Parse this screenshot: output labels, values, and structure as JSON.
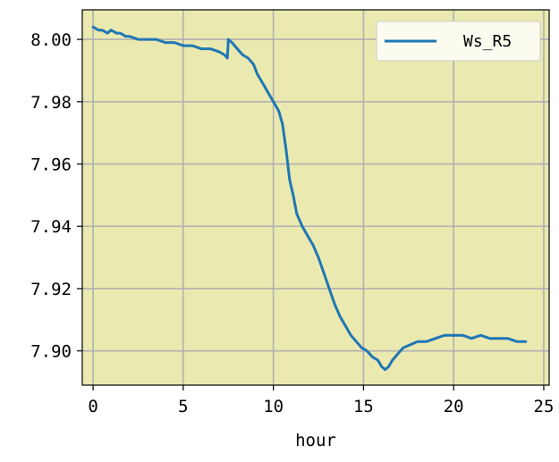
{
  "chart_data": {
    "type": "line",
    "xlabel": "hour",
    "ylabel": "",
    "xlim": [
      -0.6,
      25.3
    ],
    "ylim": [
      7.889,
      8.0095
    ],
    "xticks": [
      0,
      5,
      10,
      15,
      20,
      25
    ],
    "xtick_labels": [
      "0",
      "5",
      "10",
      "15",
      "20",
      "25"
    ],
    "yticks": [
      7.9,
      7.92,
      7.94,
      7.96,
      7.98,
      8.0
    ],
    "ytick_labels": [
      "7.90",
      "7.92",
      "7.94",
      "7.96",
      "7.98",
      "8.00"
    ],
    "grid": true,
    "legend_position": "upper right",
    "colors": {
      "plot_background": "#eae9b0",
      "series": "#1f77b4",
      "grid": "#b0b0b0"
    },
    "series": [
      {
        "name": "Ws_R5",
        "x": [
          0.0,
          0.3,
          0.5,
          0.8,
          1.0,
          1.3,
          1.5,
          1.8,
          2.0,
          2.5,
          3.0,
          3.5,
          4.0,
          4.5,
          5.0,
          5.5,
          6.0,
          6.5,
          7.0,
          7.3,
          7.45,
          7.5,
          7.7,
          8.0,
          8.3,
          8.6,
          8.9,
          9.1,
          9.3,
          9.5,
          9.8,
          10.0,
          10.3,
          10.5,
          10.7,
          10.9,
          11.1,
          11.3,
          11.6,
          11.9,
          12.2,
          12.5,
          12.8,
          13.1,
          13.4,
          13.7,
          14.0,
          14.3,
          14.6,
          14.9,
          15.2,
          15.5,
          15.8,
          16.0,
          16.2,
          16.4,
          16.6,
          16.9,
          17.2,
          17.6,
          18.0,
          18.5,
          19.0,
          19.5,
          20.0,
          20.5,
          21.0,
          21.5,
          22.0,
          22.5,
          23.0,
          23.5,
          24.0
        ],
        "y": [
          8.004,
          8.003,
          8.003,
          8.002,
          8.003,
          8.002,
          8.002,
          8.001,
          8.001,
          8.0,
          8.0,
          8.0,
          7.999,
          7.999,
          7.998,
          7.998,
          7.997,
          7.997,
          7.996,
          7.995,
          7.994,
          8.0,
          7.999,
          7.997,
          7.995,
          7.994,
          7.992,
          7.989,
          7.987,
          7.985,
          7.982,
          7.98,
          7.977,
          7.973,
          7.965,
          7.955,
          7.95,
          7.944,
          7.94,
          7.937,
          7.934,
          7.93,
          7.925,
          7.92,
          7.915,
          7.911,
          7.908,
          7.905,
          7.903,
          7.901,
          7.9,
          7.898,
          7.897,
          7.895,
          7.894,
          7.895,
          7.897,
          7.899,
          7.901,
          7.902,
          7.903,
          7.903,
          7.904,
          7.905,
          7.905,
          7.905,
          7.904,
          7.905,
          7.904,
          7.904,
          7.904,
          7.903,
          7.903
        ]
      }
    ]
  }
}
